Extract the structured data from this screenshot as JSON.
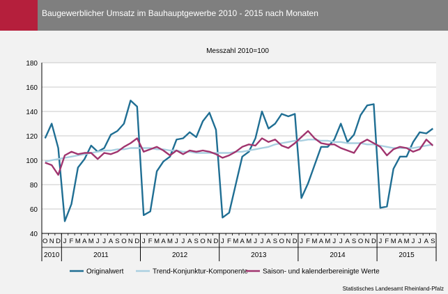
{
  "header": {
    "title": "Baugewerblicher Umsatz im Bauhauptgewerbe 2010 - 2015 nach Monaten"
  },
  "source": "Statistisches Landesamt Rheinland-Pfalz",
  "colors": {
    "original": "#1f6e93",
    "trend": "#a9cfe0",
    "saison": "#a0346e",
    "header_bg": "#7f7f7f",
    "accent": "#b51f3c"
  },
  "chart_data": {
    "type": "line",
    "subtitle": "Messzahl 2010=100",
    "ylim": [
      40,
      180
    ],
    "yticks": [
      40,
      60,
      80,
      100,
      120,
      140,
      160,
      180
    ],
    "grid": true,
    "legend_position": "bottom",
    "x": [
      "O",
      "N",
      "D",
      "J",
      "F",
      "M",
      "A",
      "M",
      "J",
      "J",
      "A",
      "S",
      "O",
      "N",
      "D",
      "J",
      "F",
      "M",
      "A",
      "M",
      "J",
      "J",
      "A",
      "S",
      "O",
      "N",
      "D",
      "J",
      "F",
      "M",
      "A",
      "M",
      "J",
      "J",
      "A",
      "S",
      "O",
      "N",
      "D",
      "J",
      "F",
      "M",
      "A",
      "M",
      "J",
      "J",
      "A",
      "S",
      "O",
      "N",
      "D",
      "J",
      "F",
      "M",
      "A",
      "M",
      "J",
      "J",
      "A",
      "S"
    ],
    "years": [
      {
        "label": "2010",
        "start": 0,
        "count": 3
      },
      {
        "label": "2011",
        "start": 3,
        "count": 12
      },
      {
        "label": "2012",
        "start": 15,
        "count": 12
      },
      {
        "label": "2013",
        "start": 27,
        "count": 12
      },
      {
        "label": "2014",
        "start": 39,
        "count": 12
      },
      {
        "label": "2015",
        "start": 51,
        "count": 9
      }
    ],
    "series": [
      {
        "name": "Originalwert",
        "color": "#1f6e93",
        "values": [
          118,
          130,
          110,
          50,
          64,
          94,
          101,
          112,
          107,
          110,
          121,
          124,
          130,
          149,
          144,
          55,
          58,
          91,
          99,
          103,
          117,
          118,
          123,
          119,
          132,
          139,
          125,
          53,
          57,
          80,
          103,
          107,
          118,
          140,
          126,
          130,
          138,
          136,
          138,
          69,
          81,
          96,
          111,
          111,
          117,
          130,
          115,
          121,
          137,
          145,
          146,
          61,
          62,
          93,
          103,
          103,
          115,
          123,
          122,
          126
        ]
      },
      {
        "name": "Trend-Konjunktur-Komponente",
        "color": "#a9cfe0",
        "values": [
          99,
          100,
          101,
          102,
          103,
          104,
          105,
          106,
          107,
          108,
          108,
          109,
          109,
          110,
          110,
          110,
          110,
          109,
          109,
          108,
          108,
          107,
          107,
          106,
          106,
          106,
          106,
          106,
          106,
          107,
          107,
          108,
          109,
          110,
          111,
          113,
          114,
          115,
          116,
          116,
          117,
          117,
          116,
          116,
          115,
          115,
          114,
          114,
          114,
          113,
          113,
          112,
          111,
          110,
          110,
          110,
          110,
          111,
          112,
          113
        ]
      },
      {
        "name": "Saison- und kalenderbereinigte Werte",
        "color": "#a0346e",
        "values": [
          98,
          96,
          88,
          104,
          107,
          105,
          106,
          106,
          101,
          106,
          105,
          107,
          111,
          114,
          118,
          107,
          109,
          111,
          108,
          104,
          108,
          105,
          108,
          107,
          108,
          107,
          105,
          102,
          104,
          107,
          111,
          113,
          112,
          118,
          115,
          117,
          112,
          110,
          114,
          119,
          124,
          118,
          114,
          113,
          113,
          110,
          108,
          106,
          114,
          117,
          114,
          111,
          104,
          109,
          111,
          110,
          107,
          109,
          117,
          112
        ]
      }
    ]
  }
}
